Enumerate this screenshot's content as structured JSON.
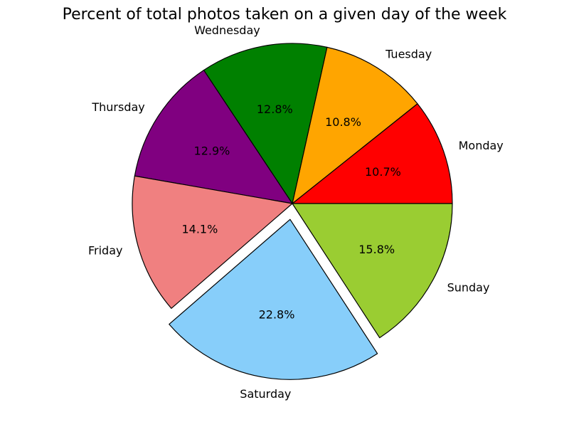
{
  "chart_data": {
    "type": "pie",
    "title": "Percent of total photos taken on a given day of the week",
    "categories": [
      "Monday",
      "Tuesday",
      "Wednesday",
      "Thursday",
      "Friday",
      "Saturday",
      "Sunday"
    ],
    "values": [
      10.7,
      10.8,
      12.8,
      12.9,
      14.1,
      22.8,
      15.8
    ],
    "value_labels": [
      "10.7%",
      "10.8%",
      "12.8%",
      "12.9%",
      "14.1%",
      "22.8%",
      "15.8%"
    ],
    "colors": [
      "#ff0000",
      "#ffa500",
      "#008000",
      "#800080",
      "#f08080",
      "#87cefa",
      "#9acd32"
    ],
    "explode": [
      0,
      0,
      0,
      0,
      0,
      0.1,
      0
    ],
    "start_angle": 0,
    "direction": "counterclockwise",
    "edge_color": "#000000"
  }
}
